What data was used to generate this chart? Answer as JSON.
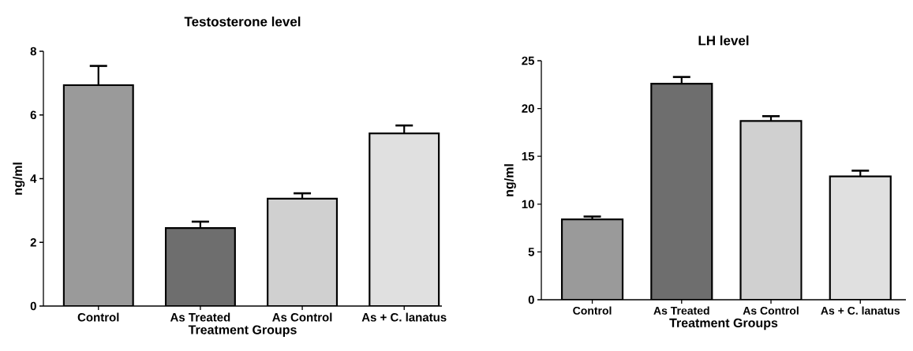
{
  "chart_data": [
    {
      "type": "bar",
      "title": "Testosterone level",
      "xlabel": "Treatment Groups",
      "ylabel": "ng/ml",
      "categories": [
        "Control",
        "As Treated",
        "As Control",
        "As + C. lanatus"
      ],
      "values": [
        6.94,
        2.45,
        3.37,
        5.42
      ],
      "errors": [
        0.6,
        0.2,
        0.17,
        0.25
      ],
      "colors": [
        "#9a9a9a",
        "#6e6e6e",
        "#d0d0d0",
        "#e0e0e0"
      ],
      "ylim": [
        0,
        8
      ],
      "yticks": [
        0,
        2,
        4,
        6,
        8
      ]
    },
    {
      "type": "bar",
      "title": "LH level",
      "xlabel": "Treatment Groups",
      "ylabel": "ng/ml",
      "categories": [
        "Control",
        "As Treated",
        "As Control",
        "As + C. lanatus"
      ],
      "values": [
        8.4,
        22.6,
        18.7,
        12.9
      ],
      "errors": [
        0.3,
        0.7,
        0.5,
        0.6
      ],
      "colors": [
        "#9a9a9a",
        "#6e6e6e",
        "#d0d0d0",
        "#e0e0e0"
      ],
      "ylim": [
        0,
        25
      ],
      "yticks": [
        0,
        5,
        10,
        15,
        20,
        25
      ]
    }
  ]
}
